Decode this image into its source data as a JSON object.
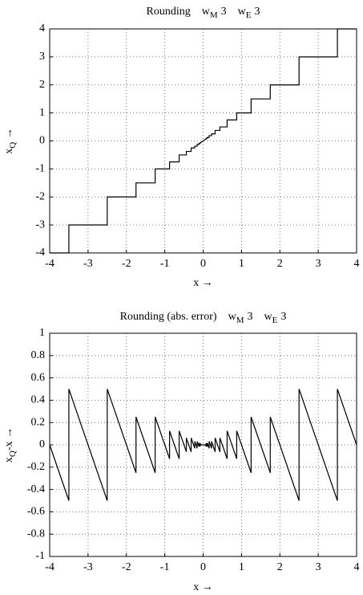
{
  "chart_data": [
    {
      "type": "line",
      "title": "Rounding",
      "title_terms": [
        {
          "symbol": "w",
          "subscript": "M",
          "value": 3
        },
        {
          "symbol": "w",
          "subscript": "E",
          "value": 3
        }
      ],
      "xlabel": "x  →",
      "ylabel": {
        "symbol": "x",
        "subscript": "Q",
        "suffix": " →"
      },
      "xlim": [
        -4,
        4
      ],
      "ylim": [
        -4,
        4
      ],
      "xticks": [
        -4,
        -3,
        -2,
        -1,
        0,
        1,
        2,
        3,
        4
      ],
      "yticks": [
        -4,
        -3,
        -2,
        -1,
        0,
        1,
        2,
        3,
        4
      ],
      "grid": true,
      "series": [
        {
          "color": "#000000",
          "x": [
            -4,
            -3.5,
            -3.5,
            -2.5,
            -2.5,
            -1.75,
            -1.75,
            -1.25,
            -1.25,
            -0.875,
            -0.875,
            -0.625,
            -0.625,
            -0.4375,
            -0.4375,
            -0.3125,
            -0.3125,
            -0.21875,
            -0.21875,
            -0.15625,
            -0.15625,
            -0.109375,
            -0.109375,
            -0.078125,
            -0.078125,
            -0.0625,
            0.0625,
            0.078125,
            0.078125,
            0.109375,
            0.109375,
            0.15625,
            0.15625,
            0.21875,
            0.21875,
            0.3125,
            0.3125,
            0.4375,
            0.4375,
            0.625,
            0.625,
            0.875,
            0.875,
            1.25,
            1.25,
            1.75,
            1.75,
            2.5,
            2.5,
            3.5,
            3.5,
            4
          ],
          "values": [
            -4,
            -4,
            -3,
            -3,
            -2,
            -2,
            -1.5,
            -1.5,
            -1,
            -1,
            -0.75,
            -0.75,
            -0.5,
            -0.5,
            -0.375,
            -0.375,
            -0.25,
            -0.25,
            -0.1875,
            -0.1875,
            -0.125,
            -0.125,
            -0.09375,
            -0.09375,
            -0.0625,
            -0.0625,
            0.0625,
            0.0625,
            0.09375,
            0.09375,
            0.125,
            0.125,
            0.1875,
            0.1875,
            0.25,
            0.25,
            0.375,
            0.375,
            0.5,
            0.5,
            0.75,
            0.75,
            1,
            1,
            1.5,
            1.5,
            2,
            2,
            3,
            3,
            4,
            4
          ]
        }
      ]
    },
    {
      "type": "line",
      "title": "Rounding (abs. error)",
      "title_terms": [
        {
          "symbol": "w",
          "subscript": "M",
          "value": 3
        },
        {
          "symbol": "w",
          "subscript": "E",
          "value": 3
        }
      ],
      "xlabel": "x  →",
      "ylabel": {
        "symbol": "x",
        "subscript": "Q",
        "suffix": "-x  →"
      },
      "xlim": [
        -4,
        4
      ],
      "ylim": [
        -1,
        1
      ],
      "xticks": [
        -4,
        -3,
        -2,
        -1,
        0,
        1,
        2,
        3,
        4
      ],
      "yticks": [
        -1,
        -0.8,
        -0.6,
        -0.4,
        -0.2,
        0,
        0.2,
        0.4,
        0.6,
        0.8,
        1
      ],
      "grid": true,
      "series": [
        {
          "color": "#000000",
          "x": [
            -4,
            -3.5,
            -3.5,
            -2.5,
            -2.5,
            -1.75,
            -1.75,
            -1.25,
            -1.25,
            -0.875,
            -0.875,
            -0.625,
            -0.625,
            -0.4375,
            -0.4375,
            -0.3125,
            -0.3125,
            -0.21875,
            -0.21875,
            -0.15625,
            -0.15625,
            -0.109375,
            -0.109375,
            -0.078125,
            -0.078125,
            -0.0625,
            0.0625,
            0.078125,
            0.078125,
            0.109375,
            0.109375,
            0.15625,
            0.15625,
            0.21875,
            0.21875,
            0.3125,
            0.3125,
            0.4375,
            0.4375,
            0.625,
            0.625,
            0.875,
            0.875,
            1.25,
            1.25,
            1.75,
            1.75,
            2.5,
            2.5,
            3.5,
            3.5,
            4
          ],
          "values": [
            0,
            -0.5,
            0.5,
            -0.5,
            0.5,
            -0.25,
            0.25,
            -0.25,
            0.25,
            -0.125,
            0.125,
            -0.125,
            0.125,
            -0.0625,
            0.0625,
            -0.0625,
            0.0625,
            -0.03125,
            0.03125,
            -0.03125,
            0.03125,
            -0.015625,
            0.015625,
            -0.015625,
            0.015625,
            0,
            0,
            -0.015625,
            0.015625,
            -0.015625,
            0.015625,
            -0.03125,
            0.03125,
            -0.03125,
            0.03125,
            -0.0625,
            0.0625,
            -0.0625,
            0.0625,
            -0.125,
            0.125,
            -0.125,
            0.125,
            -0.25,
            0.25,
            -0.25,
            0.25,
            -0.5,
            0.5,
            -0.5,
            0.5,
            0
          ]
        }
      ]
    }
  ]
}
